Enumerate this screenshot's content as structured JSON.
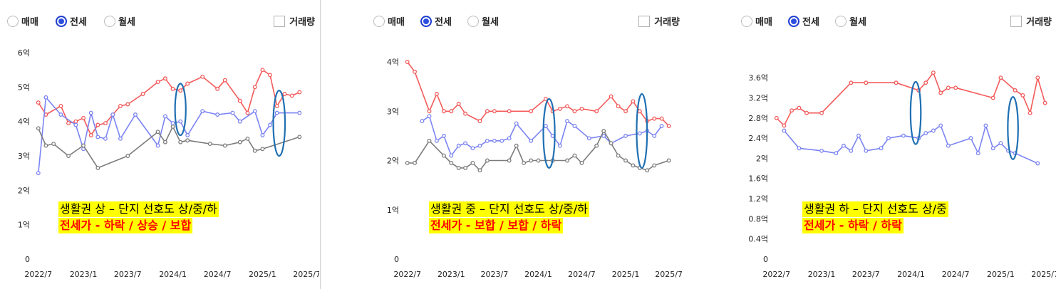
{
  "controls": {
    "radio_labels": [
      "매매",
      "전세",
      "월세"
    ],
    "selected": "전세",
    "volume_label": "거래량"
  },
  "colors": {
    "series_a": "#f35a5a",
    "series_b": "#7b84f2",
    "series_c": "#7c7c7c",
    "ellipse": "#1f6fb2",
    "highlight": "#ffff00",
    "accent_text": "#ff0000"
  },
  "chart_data": [
    {
      "type": "line",
      "xlim": [
        "2022-06-20",
        "2025-07-05"
      ],
      "x_ticks": [
        "2022/7",
        "2023/1",
        "2023/7",
        "2024/1",
        "2024/7",
        "2025/1",
        "2025/7"
      ],
      "x_tick_dates": [
        "2022-07-01",
        "2023-01-01",
        "2023-07-01",
        "2024-01-01",
        "2024-07-01",
        "2025-01-01",
        "2025-07-01"
      ],
      "ylim": [
        0,
        6
      ],
      "y_ticks": [
        0,
        1,
        2,
        3,
        4,
        5,
        6
      ],
      "y_tick_labels": [
        "0",
        "1억",
        "2억",
        "3억",
        "4억",
        "5억",
        "6억"
      ],
      "series": [
        {
          "x": [
            "2022-07-01",
            "2022-08-01",
            "2022-10-01",
            "2022-11-01",
            "2022-12-01",
            "2023-01-01",
            "2023-02-01",
            "2023-03-01",
            "2023-04-01",
            "2023-05-01",
            "2023-06-01",
            "2023-07-01",
            "2023-09-01",
            "2023-11-01",
            "2023-12-01",
            "2024-01-01",
            "2024-02-01",
            "2024-03-01",
            "2024-05-01",
            "2024-07-01",
            "2024-08-01",
            "2024-10-01",
            "2024-11-01",
            "2024-12-01",
            "2025-01-01",
            "2025-02-01",
            "2025-03-01",
            "2025-04-01",
            "2025-05-01",
            "2025-06-01"
          ],
          "y": [
            4.55,
            4.2,
            4.45,
            3.95,
            4.0,
            4.1,
            3.6,
            3.9,
            3.95,
            4.2,
            4.45,
            4.5,
            4.8,
            5.15,
            5.25,
            4.95,
            4.9,
            5.1,
            5.3,
            4.95,
            5.2,
            4.6,
            4.25,
            5.0,
            5.5,
            5.35,
            4.45,
            4.8,
            4.75,
            4.85
          ]
        },
        {
          "x": [
            "2022-07-01",
            "2022-08-01",
            "2022-10-01",
            "2022-12-01",
            "2023-01-01",
            "2023-02-01",
            "2023-03-01",
            "2023-04-01",
            "2023-05-01",
            "2023-06-01",
            "2023-08-01",
            "2023-11-01",
            "2023-12-01",
            "2024-01-01",
            "2024-02-01",
            "2024-03-01",
            "2024-05-01",
            "2024-07-01",
            "2024-09-01",
            "2024-10-01",
            "2024-12-01",
            "2025-01-01",
            "2025-02-01",
            "2025-03-01",
            "2025-06-01"
          ],
          "y": [
            2.5,
            4.7,
            4.2,
            3.9,
            3.2,
            4.25,
            3.55,
            3.5,
            4.2,
            3.5,
            4.2,
            3.3,
            4.15,
            3.95,
            4.0,
            3.6,
            4.3,
            4.2,
            4.25,
            4.0,
            4.3,
            3.6,
            3.9,
            4.25,
            4.25
          ]
        },
        {
          "x": [
            "2022-07-01",
            "2022-08-01",
            "2022-09-01",
            "2022-11-01",
            "2023-01-01",
            "2023-03-01",
            "2023-07-01",
            "2023-11-01",
            "2023-12-01",
            "2024-01-01",
            "2024-02-01",
            "2024-03-01",
            "2024-06-01",
            "2024-08-01",
            "2024-10-01",
            "2024-11-01",
            "2024-12-01",
            "2025-01-01",
            "2025-06-01"
          ],
          "y": [
            3.8,
            3.3,
            3.35,
            3.0,
            3.3,
            2.65,
            3.0,
            3.7,
            3.4,
            3.85,
            3.4,
            3.45,
            3.35,
            3.3,
            3.4,
            3.5,
            3.15,
            3.2,
            3.55
          ]
        }
      ],
      "annotation": {
        "line1": "생활권 상 – 단지 선호도 상/중/하",
        "line2": "전세가 - 하락 / 상승 / 보합"
      },
      "ellipses": [
        {
          "x": "2024-02-01",
          "y": 4.35,
          "rx_days": 22,
          "ry": 0.75
        },
        {
          "x": "2025-03-10",
          "y": 3.95,
          "rx_days": 24,
          "ry": 0.95
        }
      ]
    },
    {
      "type": "line",
      "xlim": [
        "2022-06-20",
        "2025-07-05"
      ],
      "x_ticks": [
        "2022/7",
        "2023/1",
        "2023/7",
        "2024/1",
        "2024/7",
        "2025/1",
        "2025/7"
      ],
      "x_tick_dates": [
        "2022-07-01",
        "2023-01-01",
        "2023-07-01",
        "2024-01-01",
        "2024-07-01",
        "2025-01-01",
        "2025-07-01"
      ],
      "ylim": [
        0,
        4
      ],
      "y_ticks": [
        0,
        1,
        2,
        3,
        4
      ],
      "y_tick_labels": [
        "0",
        "1억",
        "2억",
        "3억",
        "4억"
      ],
      "series": [
        {
          "x": [
            "2022-07-01",
            "2022-08-01",
            "2022-10-01",
            "2022-11-01",
            "2022-12-01",
            "2023-01-01",
            "2023-02-01",
            "2023-03-01",
            "2023-05-01",
            "2023-06-01",
            "2023-07-01",
            "2023-09-01",
            "2023-12-01",
            "2024-02-01",
            "2024-03-01",
            "2024-04-01",
            "2024-05-01",
            "2024-06-01",
            "2024-07-01",
            "2024-09-01",
            "2024-11-01",
            "2024-12-01",
            "2025-01-01",
            "2025-02-01",
            "2025-03-01",
            "2025-04-01",
            "2025-05-01",
            "2025-06-01",
            "2025-07-01"
          ],
          "y": [
            4.0,
            3.8,
            3.0,
            3.35,
            3.0,
            3.0,
            3.15,
            2.95,
            2.8,
            3.0,
            3.0,
            3.0,
            3.0,
            3.25,
            3.0,
            3.05,
            3.1,
            3.0,
            3.05,
            3.0,
            3.3,
            3.1,
            3.0,
            3.2,
            3.0,
            2.8,
            2.85,
            2.85,
            2.7
          ]
        },
        {
          "x": [
            "2022-09-01",
            "2022-10-01",
            "2022-11-01",
            "2022-12-01",
            "2023-01-01",
            "2023-02-01",
            "2023-03-01",
            "2023-04-01",
            "2023-05-01",
            "2023-06-01",
            "2023-07-01",
            "2023-08-01",
            "2023-09-01",
            "2023-10-01",
            "2023-12-01",
            "2024-02-01",
            "2024-03-01",
            "2024-04-01",
            "2024-05-01",
            "2024-06-01",
            "2024-08-01",
            "2024-10-01",
            "2024-11-01",
            "2025-01-01",
            "2025-03-01",
            "2025-04-01",
            "2025-05-01",
            "2025-06-01"
          ],
          "y": [
            2.8,
            2.9,
            2.4,
            2.5,
            2.1,
            2.3,
            2.35,
            2.25,
            2.3,
            2.4,
            2.4,
            2.4,
            2.45,
            2.75,
            2.4,
            2.7,
            2.5,
            2.3,
            2.8,
            2.7,
            2.45,
            2.5,
            2.35,
            2.5,
            2.55,
            2.6,
            2.5,
            2.7
          ]
        },
        {
          "x": [
            "2022-07-01",
            "2022-08-01",
            "2022-10-01",
            "2022-12-01",
            "2023-01-01",
            "2023-02-01",
            "2023-03-01",
            "2023-04-01",
            "2023-05-01",
            "2023-06-01",
            "2023-09-01",
            "2023-10-01",
            "2023-11-01",
            "2023-12-01",
            "2024-01-01",
            "2024-03-01",
            "2024-05-01",
            "2024-06-01",
            "2024-07-01",
            "2024-09-01",
            "2024-10-01",
            "2024-11-01",
            "2024-12-01",
            "2025-01-01",
            "2025-02-01",
            "2025-03-01",
            "2025-04-01",
            "2025-05-01",
            "2025-07-01"
          ],
          "y": [
            1.95,
            1.95,
            2.4,
            2.1,
            1.95,
            1.85,
            1.85,
            1.95,
            1.8,
            2.0,
            2.0,
            2.3,
            1.95,
            2.0,
            2.0,
            2.0,
            2.0,
            2.1,
            1.95,
            2.3,
            2.6,
            2.35,
            2.1,
            2.0,
            1.9,
            1.85,
            1.8,
            1.9,
            2.0
          ]
        }
      ],
      "annotation": {
        "line1": "생활권 중 – 단지 선호도 상/중/하",
        "line2": "전세가 - 보합 / 보합 / 하락"
      },
      "ellipses": [
        {
          "x": "2024-02-15",
          "y": 2.55,
          "rx_days": 24,
          "ry": 0.7
        },
        {
          "x": "2025-03-10",
          "y": 2.6,
          "rx_days": 22,
          "ry": 0.75
        }
      ]
    },
    {
      "type": "line",
      "xlim": [
        "2022-06-20",
        "2025-07-05"
      ],
      "x_ticks": [
        "2022/7",
        "2023/1",
        "2023/7",
        "2024/1",
        "2024/7",
        "2025/1",
        "2025/7"
      ],
      "x_tick_dates": [
        "2022-07-01",
        "2023-01-01",
        "2023-07-01",
        "2024-01-01",
        "2024-07-01",
        "2025-01-01",
        "2025-07-01"
      ],
      "ylim": [
        0,
        3.8
      ],
      "y_ticks": [
        0,
        0.4,
        0.8,
        1.2,
        1.6,
        2.0,
        2.4,
        2.8,
        3.2,
        3.6
      ],
      "y_tick_labels": [
        "0",
        "0.4억",
        "0.8억",
        "1.2억",
        "1.6억",
        "2억",
        "2.4억",
        "2.8억",
        "3.2억",
        "3.6억"
      ],
      "series": [
        {
          "x": [
            "2022-07-01",
            "2022-08-01",
            "2022-09-01",
            "2022-10-01",
            "2022-11-01",
            "2023-01-01",
            "2023-05-01",
            "2023-07-01",
            "2023-11-01",
            "2024-02-01",
            "2024-03-01",
            "2024-04-01",
            "2024-05-01",
            "2024-06-01",
            "2024-07-01",
            "2024-12-01",
            "2025-01-01",
            "2025-03-01",
            "2025-04-01",
            "2025-05-01",
            "2025-06-01",
            "2025-07-01"
          ],
          "y": [
            2.8,
            2.65,
            2.95,
            3.0,
            2.9,
            2.9,
            3.5,
            3.5,
            3.5,
            3.35,
            3.5,
            3.7,
            3.3,
            3.4,
            3.4,
            3.2,
            3.6,
            3.35,
            3.25,
            2.9,
            3.6,
            3.1
          ]
        },
        {
          "x": [
            "2022-08-01",
            "2022-10-01",
            "2023-01-01",
            "2023-03-01",
            "2023-04-01",
            "2023-05-01",
            "2023-06-01",
            "2023-07-01",
            "2023-09-01",
            "2023-10-01",
            "2023-12-01",
            "2024-02-01",
            "2024-03-01",
            "2024-04-01",
            "2024-05-01",
            "2024-06-01",
            "2024-09-01",
            "2024-10-01",
            "2024-11-01",
            "2024-12-01",
            "2025-01-01",
            "2025-02-01",
            "2025-03-01",
            "2025-06-01"
          ],
          "y": [
            2.55,
            2.2,
            2.15,
            2.1,
            2.25,
            2.15,
            2.45,
            2.15,
            2.2,
            2.4,
            2.45,
            2.4,
            2.5,
            2.55,
            2.65,
            2.25,
            2.4,
            2.1,
            2.65,
            2.2,
            2.3,
            2.15,
            2.1,
            1.9
          ]
        }
      ],
      "annotation": {
        "line1": "생활권 하 – 단지 선호도 상/중",
        "line2": "전세가 - 하락 / 하락"
      },
      "ellipses": [
        {
          "x": "2024-01-20",
          "y": 2.9,
          "rx_days": 21,
          "ry": 0.62
        },
        {
          "x": "2025-02-20",
          "y": 2.6,
          "rx_days": 21,
          "ry": 0.62
        }
      ]
    }
  ]
}
